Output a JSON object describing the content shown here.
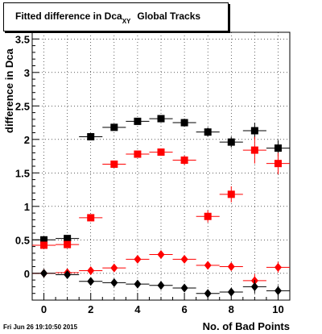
{
  "title": {
    "main": "Fitted difference in Dca",
    "sub": "XY",
    "rest": "Global Tracks"
  },
  "datestamp": "Fri Jun 26 19:10:50 2015",
  "chart_data": {
    "type": "scatter",
    "xlabel": "No. of Bad Points",
    "ylabel": "difference in Dca",
    "xlim": [
      -0.5,
      10.5
    ],
    "ylim": [
      -0.4,
      3.6
    ],
    "xticks": [
      0,
      2,
      4,
      6,
      8,
      10
    ],
    "xtick_labels": [
      "0",
      "2",
      "4",
      "6",
      "8",
      "10"
    ],
    "yticks": [
      0,
      0.5,
      1,
      1.5,
      2,
      2.5,
      3,
      3.5
    ],
    "ytick_labels": [
      "0",
      "0.5",
      "1",
      "1.5",
      "2",
      "2.5",
      "3",
      "3.5"
    ],
    "grid": true,
    "series": [
      {
        "color": "#000000",
        "marker": "square",
        "x": [
          0,
          1,
          2,
          3,
          4,
          5,
          6,
          7,
          8,
          9,
          10
        ],
        "y": [
          0.5,
          0.52,
          2.04,
          2.18,
          2.27,
          2.31,
          2.25,
          2.11,
          1.96,
          2.13,
          1.87
        ],
        "yerr": [
          0.03,
          0.03,
          0.03,
          0.04,
          0.04,
          0.05,
          0.06,
          0.07,
          0.08,
          0.12,
          0.12
        ]
      },
      {
        "color": "#ff0000",
        "marker": "square",
        "x": [
          0,
          1,
          2,
          3,
          4,
          5,
          6,
          7,
          8,
          9,
          10
        ],
        "y": [
          0.42,
          0.43,
          0.83,
          1.63,
          1.78,
          1.81,
          1.69,
          0.85,
          1.18,
          1.84,
          1.64
        ],
        "yerr": [
          0.03,
          0.03,
          0.04,
          0.04,
          0.05,
          0.05,
          0.07,
          0.09,
          0.12,
          0.2,
          0.16
        ]
      },
      {
        "color": "#ff0000",
        "marker": "diamond",
        "x": [
          0,
          1,
          2,
          3,
          4,
          5,
          6,
          7,
          8,
          9,
          10
        ],
        "y": [
          0.0,
          0.01,
          0.04,
          0.08,
          0.21,
          0.28,
          0.21,
          0.12,
          0.1,
          -0.11,
          0.09
        ],
        "yerr": [
          0.02,
          0.02,
          0.02,
          0.02,
          0.03,
          0.03,
          0.04,
          0.05,
          0.06,
          0.1,
          0.08
        ]
      },
      {
        "color": "#000000",
        "marker": "diamond",
        "x": [
          0,
          1,
          2,
          3,
          4,
          5,
          6,
          7,
          8,
          9,
          10
        ],
        "y": [
          0.0,
          -0.02,
          -0.12,
          -0.14,
          -0.16,
          -0.18,
          -0.22,
          -0.3,
          -0.28,
          -0.2,
          -0.26
        ],
        "yerr": [
          0.02,
          0.02,
          0.02,
          0.02,
          0.03,
          0.03,
          0.04,
          0.05,
          0.06,
          0.1,
          0.08
        ]
      }
    ]
  }
}
